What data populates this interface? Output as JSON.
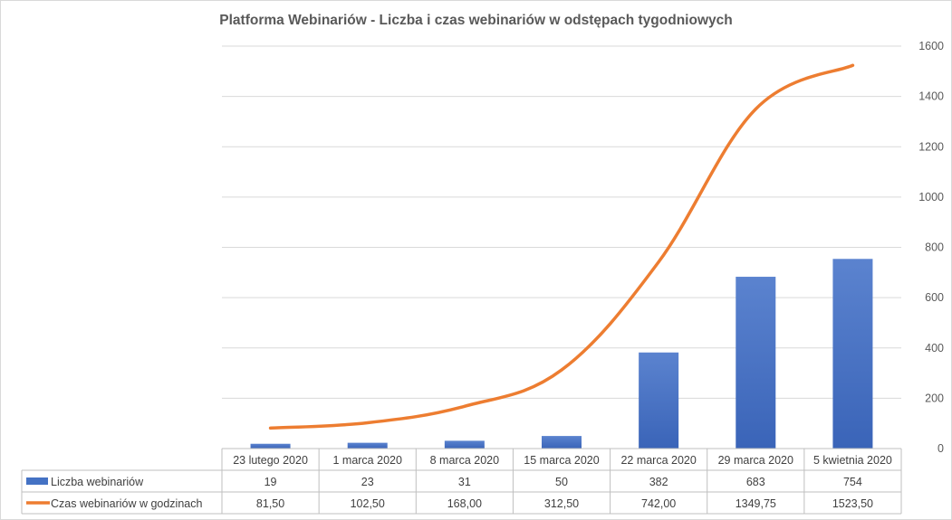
{
  "chart_data": {
    "type": "bar",
    "title": "Platforma Webinariów - Liczba i czas webinariów w odstępach tygodniowych",
    "categories": [
      "23 lutego 2020",
      "1 marca 2020",
      "8 marca 2020",
      "15 marca 2020",
      "22 marca 2020",
      "29 marca 2020",
      "5 kwietnia 2020"
    ],
    "series": [
      {
        "name": "Liczba webinariów",
        "type": "bar",
        "values": [
          19,
          23,
          31,
          50,
          382,
          683,
          754
        ],
        "labels": [
          "19",
          "23",
          "31",
          "50",
          "382",
          "683",
          "754"
        ],
        "color": "#4472c4"
      },
      {
        "name": "Czas webinariów w godzinach",
        "type": "line",
        "values": [
          81.5,
          102.5,
          168.0,
          312.5,
          742.0,
          1349.75,
          1523.5
        ],
        "labels": [
          "81,50",
          "102,50",
          "168,00",
          "312,50",
          "742,00",
          "1349,75",
          "1523,50"
        ],
        "color": "#ed7d31"
      }
    ],
    "y_axis": {
      "position": "right",
      "range": [
        0,
        1600
      ],
      "ticks": [
        0,
        200,
        400,
        600,
        800,
        1000,
        1200,
        1400,
        1600
      ]
    },
    "grid": true,
    "legend": "data-table"
  }
}
